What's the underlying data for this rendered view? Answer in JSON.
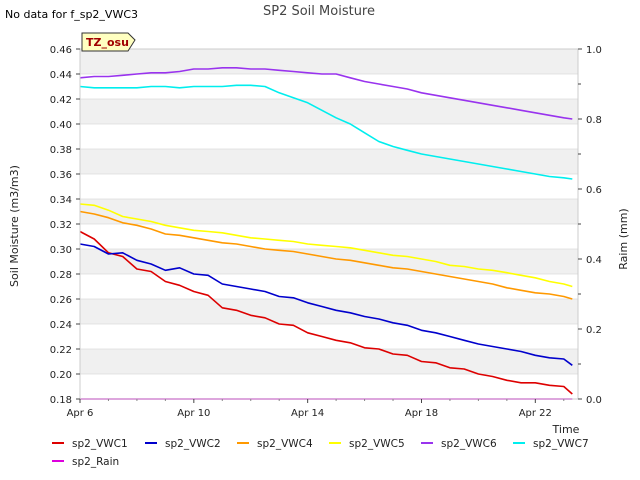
{
  "top_note": "No data for f_sp2_VWC3",
  "chart_data": {
    "type": "line",
    "title": "SP2 Soil Moisture",
    "xlabel": "Time",
    "ylabel": "Soil Moisture (m3/m3)",
    "y2label": "Raim (mm)",
    "site_badge": "TZ_osu",
    "xlim": [
      0,
      17.5
    ],
    "ylim": [
      0.18,
      0.46
    ],
    "y2lim": [
      0.0,
      1.0
    ],
    "x_ticks": [
      {
        "day": 0,
        "label": "Apr 6"
      },
      {
        "day": 4,
        "label": "Apr 10"
      },
      {
        "day": 8,
        "label": "Apr 14"
      },
      {
        "day": 12,
        "label": "Apr 18"
      },
      {
        "day": 16,
        "label": "Apr 22"
      }
    ],
    "y_ticks": [
      0.18,
      0.2,
      0.22,
      0.24,
      0.26,
      0.28,
      0.3,
      0.32,
      0.34,
      0.36,
      0.38,
      0.4,
      0.42,
      0.44,
      0.46
    ],
    "y_tick_labels": [
      "0.18",
      "0.20",
      "0.22",
      "0.24",
      "0.26",
      "0.28",
      "0.30",
      "0.32",
      "0.34",
      "0.36",
      "0.38",
      "0.40",
      "0.42",
      "0.44",
      "0.46"
    ],
    "y2_ticks": [
      0.0,
      0.2,
      0.4,
      0.6,
      0.8,
      1.0
    ],
    "y2_tick_labels": [
      "0.0",
      "0.2",
      "0.4",
      "0.6",
      "0.8",
      "1.0"
    ],
    "grid": "horizontal bands",
    "legend_position": "bottom",
    "series": [
      {
        "name": "sp2_VWC1",
        "color": "#dd0000",
        "axis": "left",
        "x": [
          0,
          0.5,
          1,
          1.5,
          2,
          2.5,
          3,
          3.5,
          4,
          4.5,
          5,
          5.5,
          6,
          6.5,
          7,
          7.5,
          8,
          8.5,
          9,
          9.5,
          10,
          10.5,
          11,
          11.5,
          12,
          12.5,
          13,
          13.5,
          14,
          14.5,
          15,
          15.5,
          16,
          16.5,
          17,
          17.3
        ],
        "y": [
          0.314,
          0.308,
          0.297,
          0.294,
          0.284,
          0.282,
          0.274,
          0.271,
          0.266,
          0.263,
          0.253,
          0.251,
          0.247,
          0.245,
          0.24,
          0.239,
          0.233,
          0.23,
          0.227,
          0.225,
          0.221,
          0.22,
          0.216,
          0.215,
          0.21,
          0.209,
          0.205,
          0.204,
          0.2,
          0.198,
          0.195,
          0.193,
          0.193,
          0.191,
          0.19,
          0.184
        ]
      },
      {
        "name": "sp2_VWC2",
        "color": "#0000cc",
        "axis": "left",
        "x": [
          0,
          0.5,
          1,
          1.5,
          2,
          2.5,
          3,
          3.5,
          4,
          4.5,
          5,
          5.5,
          6,
          6.5,
          7,
          7.5,
          8,
          8.5,
          9,
          9.5,
          10,
          10.5,
          11,
          11.5,
          12,
          12.5,
          13,
          13.5,
          14,
          14.5,
          15,
          15.5,
          16,
          16.5,
          17,
          17.3
        ],
        "y": [
          0.304,
          0.302,
          0.296,
          0.297,
          0.291,
          0.288,
          0.283,
          0.285,
          0.28,
          0.279,
          0.272,
          0.27,
          0.268,
          0.266,
          0.262,
          0.261,
          0.257,
          0.254,
          0.251,
          0.249,
          0.246,
          0.244,
          0.241,
          0.239,
          0.235,
          0.233,
          0.23,
          0.227,
          0.224,
          0.222,
          0.22,
          0.218,
          0.215,
          0.213,
          0.212,
          0.207
        ]
      },
      {
        "name": "sp2_VWC4",
        "color": "#ff9900",
        "axis": "left",
        "x": [
          0,
          0.5,
          1,
          1.5,
          2,
          2.5,
          3,
          3.5,
          4,
          4.5,
          5,
          5.5,
          6,
          6.5,
          7,
          7.5,
          8,
          8.5,
          9,
          9.5,
          10,
          10.5,
          11,
          11.5,
          12,
          12.5,
          13,
          13.5,
          14,
          14.5,
          15,
          15.5,
          16,
          16.5,
          17,
          17.3
        ],
        "y": [
          0.33,
          0.328,
          0.325,
          0.321,
          0.319,
          0.316,
          0.312,
          0.311,
          0.309,
          0.307,
          0.305,
          0.304,
          0.302,
          0.3,
          0.299,
          0.298,
          0.296,
          0.294,
          0.292,
          0.291,
          0.289,
          0.287,
          0.285,
          0.284,
          0.282,
          0.28,
          0.278,
          0.276,
          0.274,
          0.272,
          0.269,
          0.267,
          0.265,
          0.264,
          0.262,
          0.26
        ]
      },
      {
        "name": "sp2_VWC5",
        "color": "#ffff00",
        "axis": "left",
        "x": [
          0,
          0.5,
          1,
          1.5,
          2,
          2.5,
          3,
          3.5,
          4,
          4.5,
          5,
          5.5,
          6,
          6.5,
          7,
          7.5,
          8,
          8.5,
          9,
          9.5,
          10,
          10.5,
          11,
          11.5,
          12,
          12.5,
          13,
          13.5,
          14,
          14.5,
          15,
          15.5,
          16,
          16.5,
          17,
          17.3
        ],
        "y": [
          0.336,
          0.335,
          0.331,
          0.326,
          0.324,
          0.322,
          0.319,
          0.317,
          0.315,
          0.314,
          0.313,
          0.311,
          0.309,
          0.308,
          0.307,
          0.306,
          0.304,
          0.303,
          0.302,
          0.301,
          0.299,
          0.297,
          0.295,
          0.294,
          0.292,
          0.29,
          0.287,
          0.286,
          0.284,
          0.283,
          0.281,
          0.279,
          0.277,
          0.274,
          0.272,
          0.27
        ]
      },
      {
        "name": "sp2_VWC6",
        "color": "#9933ee",
        "axis": "left",
        "x": [
          0,
          0.5,
          1,
          1.5,
          2,
          2.5,
          3,
          3.5,
          4,
          4.5,
          5,
          5.5,
          6,
          6.5,
          7,
          7.5,
          8,
          8.5,
          9,
          9.5,
          10,
          10.5,
          11,
          11.5,
          12,
          12.5,
          13,
          13.5,
          14,
          14.5,
          15,
          15.5,
          16,
          16.5,
          17,
          17.3
        ],
        "y": [
          0.437,
          0.438,
          0.438,
          0.439,
          0.44,
          0.441,
          0.441,
          0.442,
          0.444,
          0.444,
          0.445,
          0.445,
          0.444,
          0.444,
          0.443,
          0.442,
          0.441,
          0.44,
          0.44,
          0.437,
          0.434,
          0.432,
          0.43,
          0.428,
          0.425,
          0.423,
          0.421,
          0.419,
          0.417,
          0.415,
          0.413,
          0.411,
          0.409,
          0.407,
          0.405,
          0.404
        ]
      },
      {
        "name": "sp2_VWC7",
        "color": "#00eeee",
        "axis": "left",
        "x": [
          0,
          0.5,
          1,
          1.5,
          2,
          2.5,
          3,
          3.5,
          4,
          4.5,
          5,
          5.5,
          6,
          6.5,
          7,
          7.5,
          8,
          8.5,
          9,
          9.5,
          10,
          10.5,
          11,
          11.5,
          12,
          12.5,
          13,
          13.5,
          14,
          14.5,
          15,
          15.5,
          16,
          16.5,
          17,
          17.3
        ],
        "y": [
          0.43,
          0.429,
          0.429,
          0.429,
          0.429,
          0.43,
          0.43,
          0.429,
          0.43,
          0.43,
          0.43,
          0.431,
          0.431,
          0.43,
          0.425,
          0.421,
          0.417,
          0.411,
          0.405,
          0.4,
          0.393,
          0.386,
          0.382,
          0.379,
          0.376,
          0.374,
          0.372,
          0.37,
          0.368,
          0.366,
          0.364,
          0.362,
          0.36,
          0.358,
          0.357,
          0.356
        ]
      },
      {
        "name": "sp2_Rain",
        "color": "#dd00dd",
        "axis": "right",
        "x": [
          0,
          17.3
        ],
        "y": [
          0.0,
          0.0
        ]
      }
    ]
  }
}
